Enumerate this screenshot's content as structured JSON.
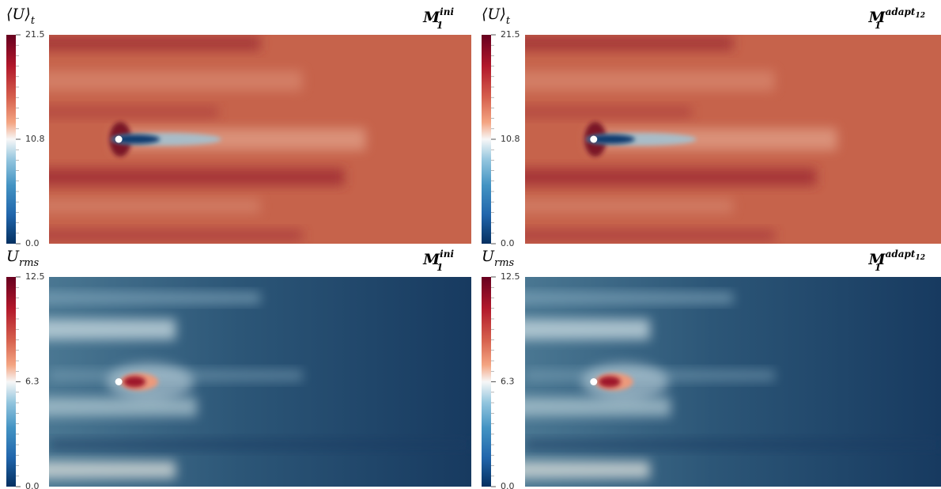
{
  "panels": [
    {
      "quantity": {
        "base": "⟨U⟩",
        "sub": "t"
      },
      "mesh": {
        "base": "M",
        "sub": "1",
        "sup": "ini"
      },
      "colorbar": {
        "ticks": [
          "21.5",
          "10.8",
          "0.0"
        ]
      }
    },
    {
      "quantity": {
        "base": "⟨U⟩",
        "sub": "t"
      },
      "mesh": {
        "base": "M",
        "sub": "1",
        "sup": "adapt",
        "sup_sub": "12"
      },
      "colorbar": {
        "ticks": [
          "21.5",
          "10.8",
          "0.0"
        ]
      }
    },
    {
      "quantity": {
        "base": "U",
        "sub": "rms"
      },
      "mesh": {
        "base": "M",
        "sub": "1",
        "sup": "ini"
      },
      "colorbar": {
        "ticks": [
          "12.5",
          "6.3",
          "0.0"
        ]
      }
    },
    {
      "quantity": {
        "base": "U",
        "sub": "rms"
      },
      "mesh": {
        "base": "M",
        "sub": "1",
        "sup": "adapt",
        "sup_sub": "12"
      },
      "colorbar": {
        "ticks": [
          "12.5",
          "6.3",
          "0.0"
        ]
      }
    }
  ]
}
